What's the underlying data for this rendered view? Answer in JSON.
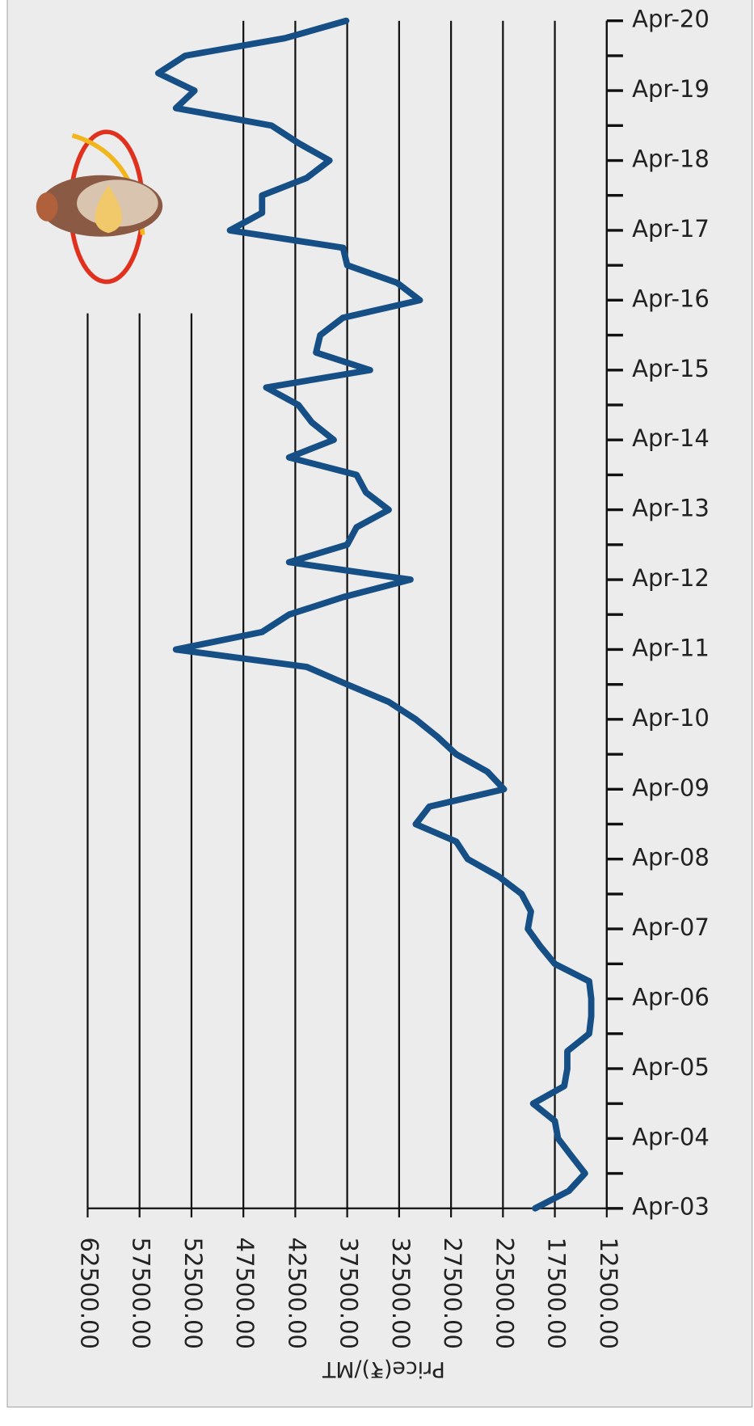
{
  "chart_data": {
    "type": "line",
    "y_label": "Price(₹)/MT",
    "categories": [
      "Apr-03",
      null,
      null,
      null,
      "Apr-04",
      null,
      null,
      null,
      "Apr-05",
      null,
      null,
      null,
      "Apr-06",
      null,
      null,
      null,
      "Apr-07",
      null,
      null,
      null,
      "Apr-08",
      null,
      null,
      null,
      "Apr-09",
      null,
      null,
      null,
      "Apr-10",
      null,
      null,
      null,
      "Apr-11",
      null,
      null,
      null,
      "Apr-12",
      null,
      null,
      null,
      "Apr-13",
      null,
      null,
      null,
      "Apr-14",
      null,
      null,
      null,
      "Apr-15",
      null,
      null,
      null,
      "Apr-16",
      null,
      null,
      null,
      "Apr-17",
      null,
      null,
      null,
      "Apr-18",
      null,
      null,
      null,
      "Apr-19",
      null,
      null,
      null,
      "Apr-20"
    ],
    "series": [
      {
        "color": "#154f85",
        "values": [
          19400,
          16150,
          14600,
          15900,
          17200,
          17500,
          19600,
          16600,
          16300,
          16300,
          14200,
          14000,
          14000,
          14200,
          17500,
          18900,
          20100,
          19800,
          20700,
          22900,
          25900,
          27000,
          30900,
          29600,
          22400,
          24000,
          27000,
          28800,
          30900,
          33500,
          37500,
          41400,
          54000,
          45700,
          43100,
          37900,
          31400,
          43100,
          37500,
          36600,
          33500,
          35700,
          36600,
          43100,
          38800,
          40900,
          42200,
          45300,
          35300,
          40500,
          40100,
          37900,
          30500,
          32700,
          37500,
          37900,
          48800,
          45700,
          45700,
          41400,
          39200,
          42200,
          44800,
          54000,
          52200,
          55700,
          53100,
          43500,
          37600
        ]
      }
    ],
    "ylim": [
      12500,
      62500
    ],
    "yticks": [
      {
        "value": 12500,
        "label": "12500.00"
      },
      {
        "value": 17500,
        "label": "17500.00"
      },
      {
        "value": 22500,
        "label": "22500.00"
      },
      {
        "value": 27500,
        "label": "27500.00"
      },
      {
        "value": 32500,
        "label": "32500.00"
      },
      {
        "value": 37500,
        "label": "37500.00"
      },
      {
        "value": 42500,
        "label": "42500.00"
      },
      {
        "value": 47500,
        "label": "47500.00"
      },
      {
        "value": 52500,
        "label": "52500.00"
      },
      {
        "value": 57500,
        "label": "57500.00"
      },
      {
        "value": 62500,
        "label": "62500.00"
      }
    ],
    "grid": true
  }
}
